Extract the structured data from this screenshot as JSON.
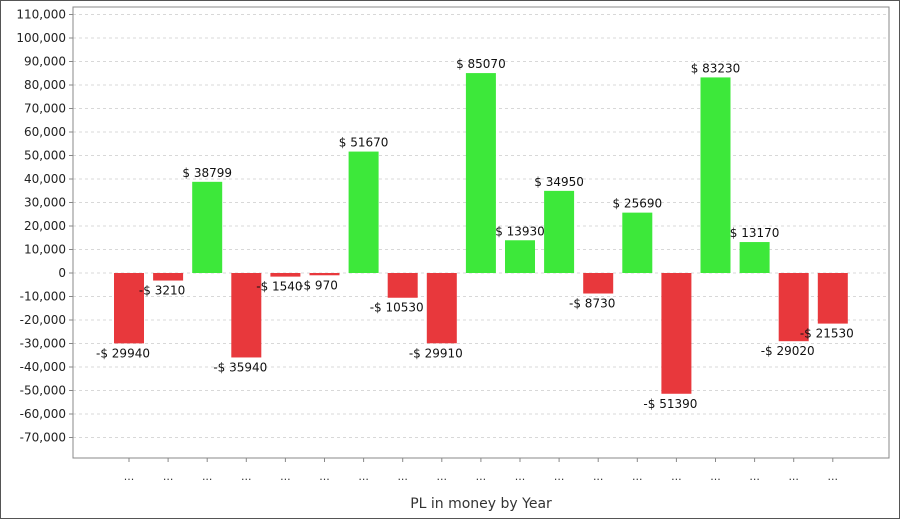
{
  "chart_data": {
    "type": "bar",
    "title": "",
    "xlabel": "PL in money by Year",
    "ylabel": "",
    "ylim": [
      -80000,
      110000
    ],
    "yticks": [
      110000,
      100000,
      90000,
      80000,
      70000,
      60000,
      50000,
      40000,
      30000,
      20000,
      10000,
      0,
      -10000,
      -20000,
      -30000,
      -40000,
      -50000,
      -60000,
      -70000
    ],
    "ytick_labels": [
      "110,000",
      "100,000",
      "90,000",
      "80,000",
      "70,000",
      "60,000",
      "50,000",
      "40,000",
      "30,000",
      "20,000",
      "10,000",
      "0",
      "-10,000",
      "-20,000",
      "-30,000",
      "-40,000",
      "-50,000",
      "-60,000",
      "-70,000"
    ],
    "grid": true,
    "categories": [
      "...",
      "...",
      "...",
      "...",
      "...",
      "...",
      "...",
      "...",
      "...",
      "...",
      "...",
      "...",
      "...",
      "...",
      "...",
      "...",
      "...",
      "...",
      "..."
    ],
    "values": [
      -29940,
      -3210,
      38799,
      -35940,
      -1540,
      -970,
      51670,
      -10530,
      -29910,
      85070,
      13930,
      34950,
      -8730,
      25690,
      -51390,
      83230,
      13170,
      -29020,
      -21530
    ],
    "data_labels": [
      "-$ 29940",
      "-$ 3210",
      "$ 38799",
      "-$ 35940",
      "-$ 1540",
      "-$ 970",
      "$ 51670",
      "-$ 10530",
      "-$ 29910",
      "$ 85070",
      "$ 13930",
      "$ 34950",
      "-$ 8730",
      "$ 25690",
      "-$ 51390",
      "$ 83230",
      "$ 13170",
      "-$ 29020",
      "-$ 21530"
    ],
    "colors": {
      "positive": "#3de83a",
      "negative": "#e8383c",
      "grid": "#d8d8d8",
      "axis": "#888888"
    }
  }
}
